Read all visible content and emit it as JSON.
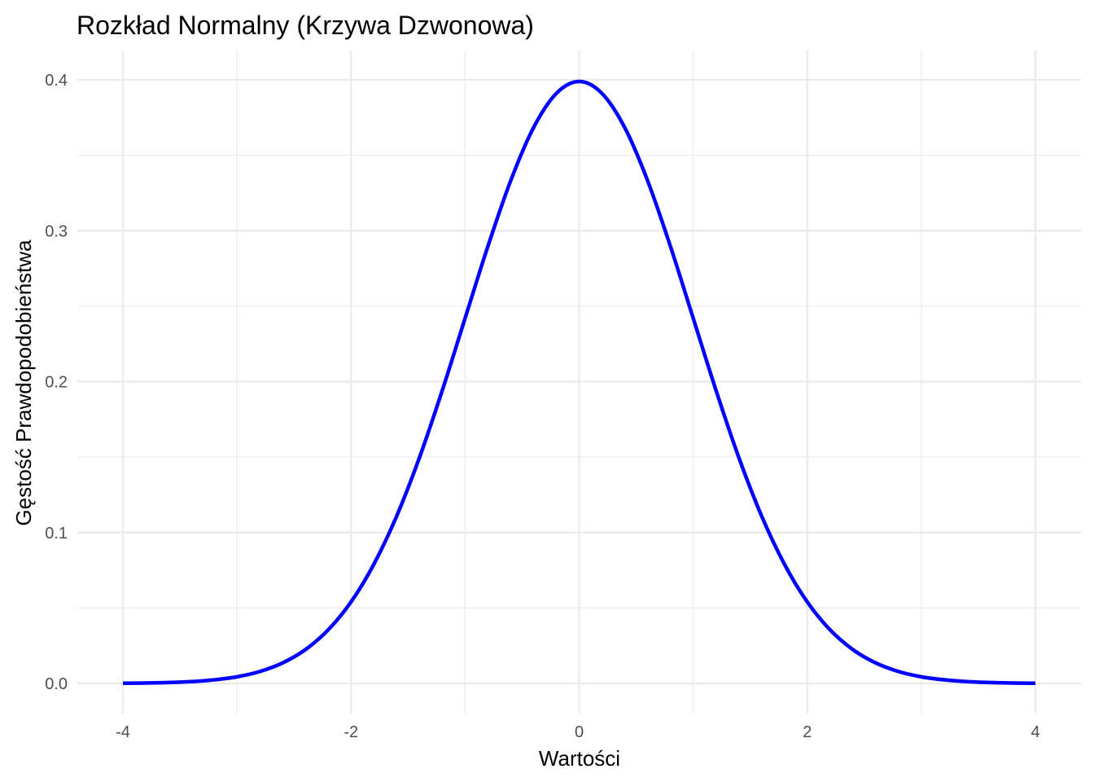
{
  "chart_data": {
    "type": "line",
    "title": "Rozkład Normalny (Krzywa Dzwonowa)",
    "xlabel": "Wartości",
    "ylabel": "Gęstość Prawdopodobieństwa",
    "xlim": [
      -4,
      4
    ],
    "ylim": [
      0,
      0.4
    ],
    "x_ticks": [
      -4,
      -2,
      0,
      2,
      4
    ],
    "x_tick_labels": [
      "-4",
      "-2",
      "0",
      "2",
      "4"
    ],
    "y_ticks": [
      0.0,
      0.1,
      0.2,
      0.3,
      0.4
    ],
    "y_tick_labels": [
      "0.0",
      "0.1",
      "0.2",
      "0.3",
      "0.4"
    ],
    "grid": true,
    "series": [
      {
        "color": "#0000ff",
        "x": [
          -4.0,
          -3.8,
          -3.6,
          -3.4,
          -3.2,
          -3.0,
          -2.8,
          -2.6,
          -2.4,
          -2.2,
          -2.0,
          -1.8,
          -1.6,
          -1.4,
          -1.2,
          -1.0,
          -0.8,
          -0.6,
          -0.4,
          -0.2,
          0.0,
          0.2,
          0.4,
          0.6,
          0.8,
          1.0,
          1.2,
          1.4,
          1.6,
          1.8,
          2.0,
          2.2,
          2.4,
          2.6,
          2.8,
          3.0,
          3.2,
          3.4,
          3.6,
          3.8,
          4.0
        ],
        "y": [
          0.0001,
          0.0003,
          0.0006,
          0.0012,
          0.0024,
          0.0044,
          0.0079,
          0.0136,
          0.0224,
          0.0355,
          0.054,
          0.079,
          0.1109,
          0.1497,
          0.1942,
          0.242,
          0.2897,
          0.3332,
          0.3683,
          0.391,
          0.3989,
          0.391,
          0.3683,
          0.3332,
          0.2897,
          0.242,
          0.1942,
          0.1497,
          0.1109,
          0.079,
          0.054,
          0.0355,
          0.0224,
          0.0136,
          0.0079,
          0.0044,
          0.0024,
          0.0012,
          0.0006,
          0.0003,
          0.0001
        ]
      }
    ]
  }
}
